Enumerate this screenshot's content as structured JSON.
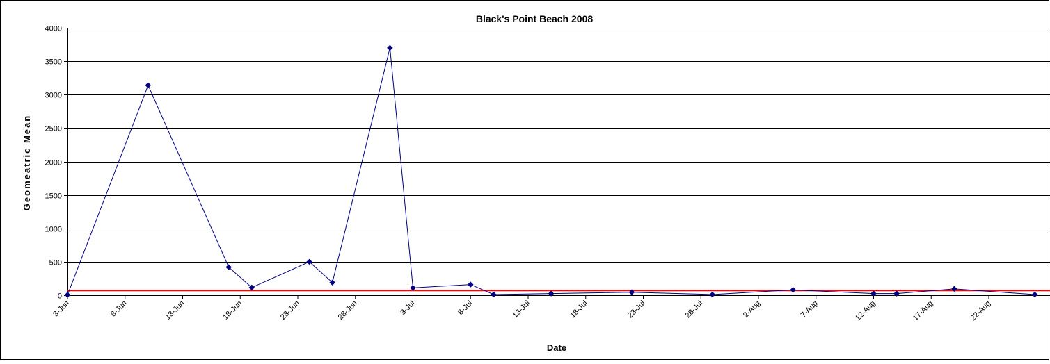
{
  "chart_data": {
    "type": "line",
    "title": "Black's Point Beach 2008",
    "xlabel": "Date",
    "ylabel": "Geomeatric Mean",
    "ylim": [
      0,
      4000
    ],
    "yticks": [
      0,
      500,
      1000,
      1500,
      2000,
      2500,
      3000,
      3500,
      4000
    ],
    "xlim": [
      "2008-06-03",
      "2008-08-27"
    ],
    "xtick_labels": [
      "3-Jun",
      "8-Jun",
      "13-Jun",
      "18-Jun",
      "23-Jun",
      "28-Jun",
      "3-Jul",
      "8-Jul",
      "13-Jul",
      "18-Jul",
      "23-Jul",
      "28-Jul",
      "2-Aug",
      "7-Aug",
      "12-Aug",
      "17-Aug",
      "22-Aug"
    ],
    "grid": "horizontal",
    "legend": "none",
    "series": [
      {
        "color": "#000080",
        "marker": "diamond",
        "x": [
          "2008-06-03",
          "2008-06-10",
          "2008-06-17",
          "2008-06-19",
          "2008-06-24",
          "2008-06-26",
          "2008-07-01",
          "2008-07-03",
          "2008-07-08",
          "2008-07-10",
          "2008-07-15",
          "2008-07-22",
          "2008-07-29",
          "2008-08-05",
          "2008-08-12",
          "2008-08-14",
          "2008-08-19",
          "2008-08-26"
        ],
        "values": [
          5,
          3140,
          420,
          115,
          500,
          190,
          3700,
          110,
          160,
          10,
          25,
          45,
          10,
          80,
          25,
          25,
          95,
          10
        ]
      }
    ],
    "reference_line": {
      "value": 70,
      "color": "#ff0000"
    },
    "colors": {
      "series": "#000080",
      "reference": "#ff0000",
      "grid": "#000000"
    }
  }
}
